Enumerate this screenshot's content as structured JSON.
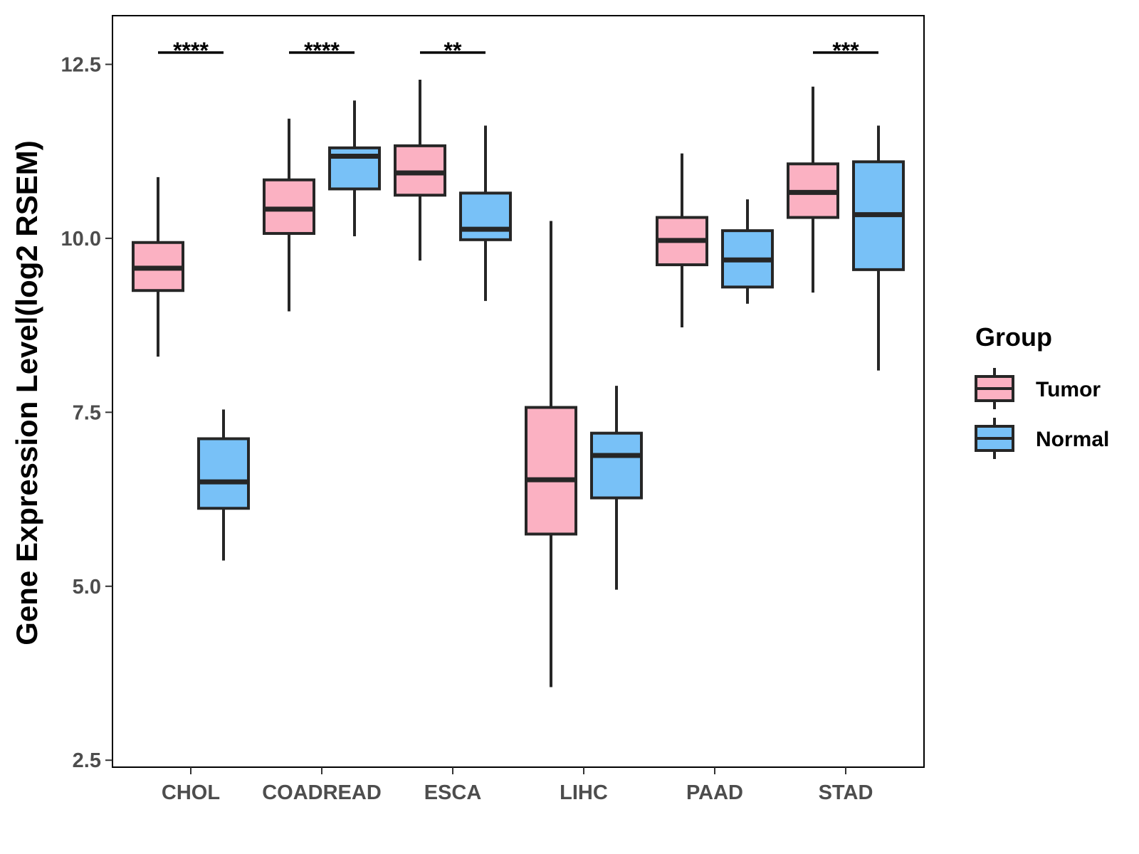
{
  "chart_data": {
    "type": "box",
    "title": "",
    "xlabel": "",
    "ylabel": "Gene Expression Level(log2 RSEM)",
    "ylim": [
      2.4,
      13.2
    ],
    "yticks": [
      2.5,
      5.0,
      7.5,
      10.0,
      12.5
    ],
    "ytick_labels": [
      "2.5",
      "5.0",
      "7.5",
      "10.0",
      "12.5"
    ],
    "categories": [
      "CHOL",
      "COADREAD",
      "ESCA",
      "LIHC",
      "PAAD",
      "STAD"
    ],
    "legend": {
      "title": "Group",
      "position": "right",
      "entries": [
        {
          "name": "Tumor",
          "color": "#FBB1C2"
        },
        {
          "name": "Normal",
          "color": "#78C1F7"
        }
      ]
    },
    "series": [
      {
        "name": "Tumor",
        "color": "#FBB1C2",
        "boxes": [
          {
            "min": 8.3,
            "q1": 9.25,
            "median": 9.57,
            "q3": 9.94,
            "max": 10.88
          },
          {
            "min": 8.95,
            "q1": 10.07,
            "median": 10.42,
            "q3": 10.84,
            "max": 11.72
          },
          {
            "min": 9.68,
            "q1": 10.62,
            "median": 10.94,
            "q3": 11.33,
            "max": 12.28
          },
          {
            "min": 3.55,
            "q1": 5.75,
            "median": 6.53,
            "q3": 7.57,
            "max": 10.25
          },
          {
            "min": 8.72,
            "q1": 9.62,
            "median": 9.97,
            "q3": 10.3,
            "max": 11.22
          },
          {
            "min": 9.22,
            "q1": 10.3,
            "median": 10.66,
            "q3": 11.07,
            "max": 12.18
          }
        ]
      },
      {
        "name": "Normal",
        "color": "#78C1F7",
        "boxes": [
          {
            "min": 5.37,
            "q1": 6.12,
            "median": 6.5,
            "q3": 7.12,
            "max": 7.54
          },
          {
            "min": 10.03,
            "q1": 10.71,
            "median": 11.18,
            "q3": 11.3,
            "max": 11.98
          },
          {
            "min": 9.1,
            "q1": 9.98,
            "median": 10.13,
            "q3": 10.65,
            "max": 11.62
          },
          {
            "min": 4.95,
            "q1": 6.27,
            "median": 6.88,
            "q3": 7.2,
            "max": 7.88
          },
          {
            "min": 9.06,
            "q1": 9.3,
            "median": 9.69,
            "q3": 10.11,
            "max": 10.56
          },
          {
            "min": 8.1,
            "q1": 9.55,
            "median": 10.34,
            "q3": 11.1,
            "max": 11.62
          }
        ]
      }
    ],
    "significance": [
      {
        "category": "CHOL",
        "label": "****"
      },
      {
        "category": "COADREAD",
        "label": "****"
      },
      {
        "category": "ESCA",
        "label": "**"
      },
      {
        "category": "LIHC",
        "label": ""
      },
      {
        "category": "PAAD",
        "label": ""
      },
      {
        "category": "STAD",
        "label": "***"
      }
    ],
    "significance_level": 12.67,
    "grid": false
  }
}
